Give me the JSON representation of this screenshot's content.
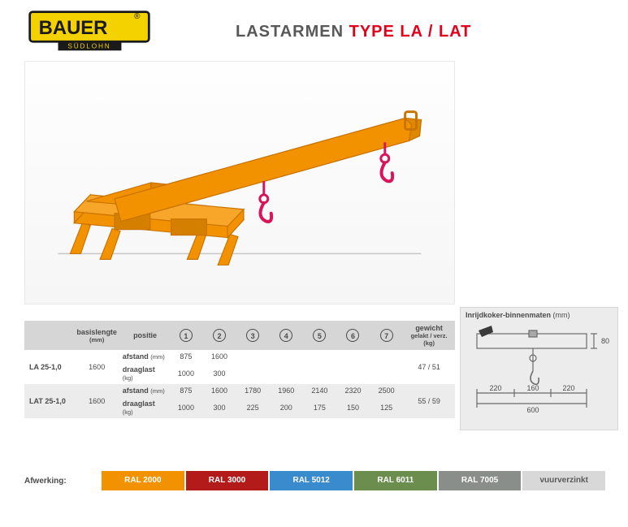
{
  "logo": {
    "brand_top": "BAUER",
    "brand_sub": "SÜDLOHN",
    "reg": "®",
    "bg_color": "#f3d200",
    "text_color": "#1a1a1a",
    "border_color": "#1a1a1a"
  },
  "title": {
    "part1": "LASTARMEN",
    "part2": "TYPE LA / LAT"
  },
  "product_color": "#f39200",
  "hook_color": "#d8155a",
  "table": {
    "head": {
      "basislengte": "basislengte",
      "basislengte_unit": "(mm)",
      "positie": "positie",
      "gewicht": "gewicht",
      "gewicht_sub": "gelakt / verz.",
      "gewicht_unit": "(kg)",
      "positions": [
        "1",
        "2",
        "3",
        "4",
        "5",
        "6",
        "7"
      ]
    },
    "rows": [
      {
        "model": "LA 25-1,0",
        "basislengte": "1600",
        "metrics": [
          {
            "label": "afstand",
            "unit": "(mm)",
            "values": [
              "875",
              "1600",
              "",
              "",
              "",
              "",
              ""
            ]
          },
          {
            "label": "draaglast",
            "unit": "(kg)",
            "values": [
              "1000",
              "300",
              "",
              "",
              "",
              "",
              ""
            ]
          }
        ],
        "gewicht": "47 / 51"
      },
      {
        "model": "LAT 25-1,0",
        "basislengte": "1600",
        "metrics": [
          {
            "label": "afstand",
            "unit": "(mm)",
            "values": [
              "875",
              "1600",
              "1780",
              "1960",
              "2140",
              "2320",
              "2500"
            ]
          },
          {
            "label": "draaglast",
            "unit": "(kg)",
            "values": [
              "1000",
              "300",
              "225",
              "200",
              "175",
              "150",
              "125"
            ]
          }
        ],
        "gewicht": "55 / 59"
      }
    ]
  },
  "diagram": {
    "title": "Inrijdkoker-binnenmaten",
    "unit": "(mm)",
    "dims": {
      "h": "80",
      "a": "220",
      "b": "160",
      "c": "220",
      "total": "600"
    },
    "line_color": "#6a6a6a",
    "text_color": "#4a4a4a"
  },
  "finish": {
    "label": "Afwerking:",
    "swatches": [
      {
        "name": "RAL 2000",
        "color": "#f39200",
        "text": "#ffffff"
      },
      {
        "name": "RAL 3000",
        "color": "#b31b1b",
        "text": "#ffffff"
      },
      {
        "name": "RAL 5012",
        "color": "#3a8bcd",
        "text": "#ffffff"
      },
      {
        "name": "RAL 6011",
        "color": "#6b8e4e",
        "text": "#ffffff"
      },
      {
        "name": "RAL 7005",
        "color": "#8a8e8a",
        "text": "#ffffff"
      },
      {
        "name": "vuurverzinkt",
        "color": "#d8d8d8",
        "text": "#5a5a5a"
      }
    ]
  }
}
